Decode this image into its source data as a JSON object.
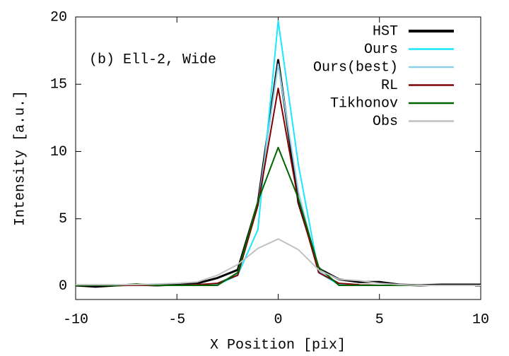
{
  "chart_data": {
    "type": "line",
    "annotation": "(b) Ell-2, Wide",
    "x_label": "X Position [pix]",
    "y_label": "Intensity [a.u.]",
    "x": [
      -10,
      -9,
      -8,
      -7,
      -6,
      -5,
      -4,
      -3,
      -2,
      -1,
      0,
      1,
      2,
      3,
      4,
      5,
      6,
      7,
      8,
      9,
      10
    ],
    "xlim": [
      -10,
      10
    ],
    "xticks": [
      -10,
      -5,
      0,
      5,
      10
    ],
    "ylim": [
      -1,
      20
    ],
    "yticks": [
      0,
      5,
      10,
      15,
      20
    ],
    "legend": "upper right",
    "series": [
      {
        "name": "HST",
        "color": "#000000",
        "values": [
          0.05,
          -0.05,
          0.05,
          0.1,
          0.05,
          0.1,
          0.2,
          0.6,
          1.2,
          6.2,
          16.8,
          6.2,
          1.3,
          0.5,
          0.3,
          0.3,
          0.1,
          0.05,
          0.1,
          0.1,
          0.1
        ]
      },
      {
        "name": "Ours",
        "color": "#19e6ff",
        "values": [
          0.05,
          0.05,
          0.05,
          0.05,
          0.05,
          0.05,
          0.05,
          0.1,
          0.8,
          4.2,
          19.7,
          9.0,
          1.0,
          0.1,
          0.05,
          0.05,
          0.05,
          0.05,
          0.05,
          0.05,
          0.05
        ]
      },
      {
        "name": "Ours(best)",
        "color": "#8ecfe8",
        "values": [
          0.05,
          0.05,
          0.05,
          0.05,
          0.05,
          0.05,
          0.1,
          0.2,
          0.9,
          6.0,
          16.5,
          7.0,
          1.1,
          0.2,
          0.1,
          0.05,
          0.05,
          0.05,
          0.05,
          0.05,
          0.05
        ]
      },
      {
        "name": "RL",
        "color": "#800000",
        "values": [
          0.05,
          0.05,
          0.05,
          0.05,
          0.05,
          0.05,
          0.1,
          0.2,
          0.8,
          6.0,
          14.7,
          6.3,
          1.0,
          0.2,
          0.1,
          0.05,
          0.05,
          0.05,
          0.05,
          0.05,
          0.05
        ]
      },
      {
        "name": "Tikhonov",
        "color": "#006400",
        "values": [
          0.05,
          0.05,
          0.05,
          0.15,
          0.05,
          0.05,
          0.05,
          0.05,
          1.0,
          6.3,
          10.3,
          6.5,
          1.4,
          0.05,
          0.05,
          0.05,
          0.05,
          0.05,
          0.05,
          0.05,
          0.05
        ]
      },
      {
        "name": "Obs",
        "color": "#c0c0c0",
        "values": [
          0.1,
          0.1,
          0.1,
          0.1,
          0.15,
          0.2,
          0.3,
          0.8,
          1.6,
          2.8,
          3.5,
          2.7,
          1.2,
          0.5,
          0.4,
          0.2,
          0.1,
          0.05,
          0.05,
          0.05,
          0.05
        ]
      }
    ]
  }
}
